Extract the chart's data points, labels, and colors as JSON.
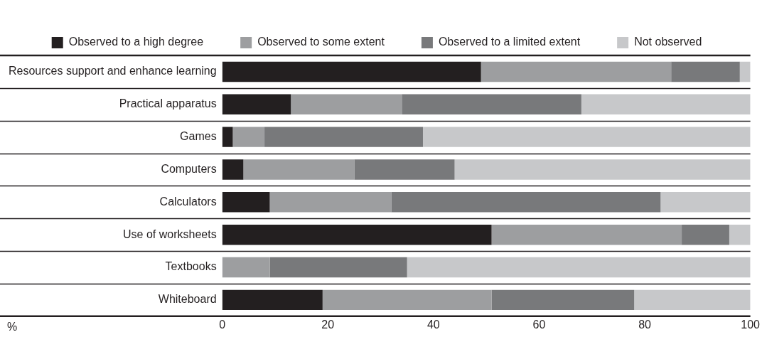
{
  "chart_data": {
    "type": "bar",
    "orientation": "horizontal",
    "stacked": true,
    "xlabel": "%",
    "categories": [
      "Resources support and enhance learning",
      "Practical apparatus",
      "Games",
      "Computers",
      "Calculators",
      "Use of worksheets",
      "Textbooks",
      "Whiteboard"
    ],
    "series": [
      {
        "name": "Observed to a high degree",
        "color": "#231f20",
        "values": [
          49,
          13,
          2,
          4,
          9,
          51,
          0,
          19
        ]
      },
      {
        "name": "Observed to some extent",
        "color": "#9d9ea0",
        "values": [
          36,
          21,
          6,
          21,
          23,
          36,
          9,
          32
        ]
      },
      {
        "name": "Observed to a limited extent",
        "color": "#78797b",
        "values": [
          13,
          34,
          30,
          19,
          51,
          9,
          26,
          27
        ]
      },
      {
        "name": "Not observed",
        "color": "#c7c8ca",
        "values": [
          2,
          32,
          62,
          56,
          17,
          4,
          65,
          22
        ]
      }
    ],
    "xlim": [
      0,
      100
    ],
    "xticks": [
      0,
      20,
      40,
      60,
      80,
      100
    ],
    "grid": "y",
    "legend": "top"
  }
}
